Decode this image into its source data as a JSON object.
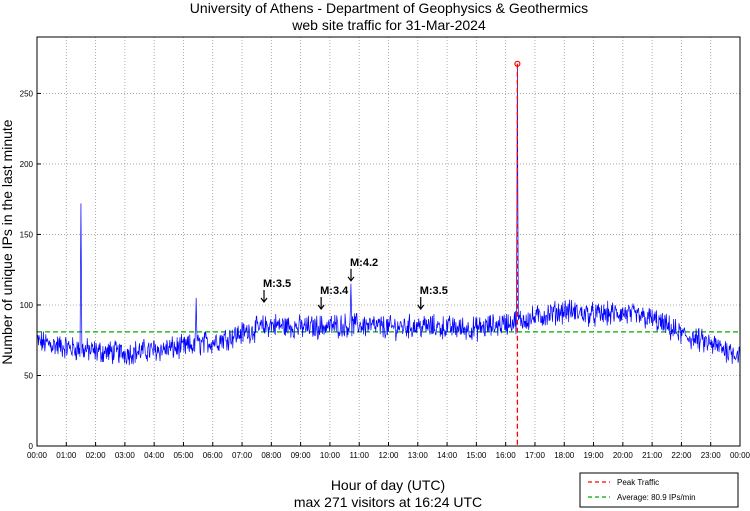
{
  "chart_data": {
    "type": "line",
    "title": "University of Athens - Department of Geophysics & Geothermics",
    "subtitle": "web site traffic for 31-Mar-2024",
    "xlabel": "Hour of day (UTC)",
    "footer": "max 271 visitors at 16:24 UTC",
    "ylabel": "Number of unique IPs in the last minute",
    "xlim": [
      0,
      24
    ],
    "ylim": [
      0,
      290
    ],
    "grid": true,
    "x_ticks": [
      "00:00",
      "01:00",
      "02:00",
      "03:00",
      "04:00",
      "05:00",
      "06:00",
      "07:00",
      "08:00",
      "09:00",
      "10:00",
      "11:00",
      "12:00",
      "13:00",
      "14:00",
      "15:00",
      "16:00",
      "17:00",
      "18:00",
      "19:00",
      "20:00",
      "21:00",
      "22:00",
      "23:00",
      "00:00"
    ],
    "y_ticks": [
      0,
      50,
      100,
      150,
      200,
      250
    ],
    "series_color": "#0000ff",
    "traffic_profile": {
      "hours": [
        0,
        1,
        2,
        3,
        4,
        5,
        6,
        7,
        8,
        9,
        10,
        11,
        12,
        13,
        14,
        15,
        16,
        17,
        18,
        19,
        20,
        21,
        22,
        23,
        24
      ],
      "values": [
        74,
        70,
        67,
        66,
        68,
        70,
        74,
        80,
        86,
        84,
        85,
        86,
        84,
        85,
        84,
        83,
        87,
        91,
        96,
        93,
        94,
        90,
        79,
        72,
        65
      ]
    },
    "spikes": [
      {
        "hour": 1.5,
        "value": 172
      },
      {
        "hour": 5.43,
        "value": 105
      },
      {
        "hour": 10.72,
        "value": 115
      },
      {
        "hour": 16.4,
        "value": 271
      }
    ],
    "peak": {
      "time": "16:24",
      "hour": 16.4,
      "value": 271,
      "color": "#ff0000"
    },
    "average": {
      "value": 80.9,
      "color": "#00aa00"
    },
    "annotations": [
      {
        "label": "M:3.5",
        "hour": 7.75,
        "value": 100
      },
      {
        "label": "M:3.4",
        "hour": 9.7,
        "value": 95
      },
      {
        "label": "M:4.2",
        "hour": 10.72,
        "value": 115
      },
      {
        "label": "M:3.5",
        "hour": 13.1,
        "value": 95
      }
    ],
    "legend": {
      "position": "bottom-right",
      "entries": [
        {
          "label": "Peak Traffic",
          "color": "#ff0000",
          "style": "dashed"
        },
        {
          "label": "Average: 80.9 IPs/min",
          "color": "#00aa00",
          "style": "dashed"
        }
      ]
    }
  }
}
